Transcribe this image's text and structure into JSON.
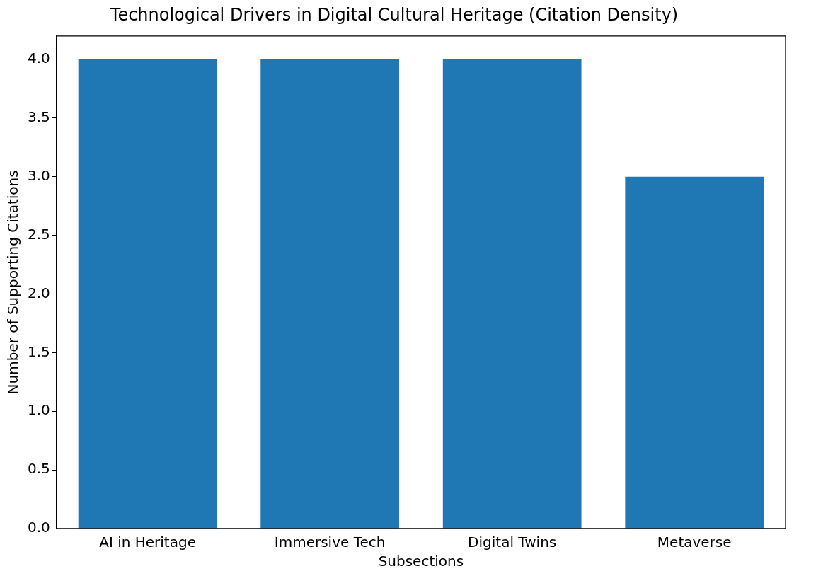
{
  "chart_data": {
    "type": "bar",
    "title": "Technological Drivers in Digital Cultural Heritage (Citation Density)",
    "xlabel": "Subsections",
    "ylabel": "Number of Supporting Citations",
    "categories": [
      "AI in Heritage",
      "Immersive Tech",
      "Digital Twins",
      "Metaverse"
    ],
    "values": [
      4,
      4,
      4,
      3
    ],
    "color": "#1f77b4",
    "ylim": [
      0,
      4.2
    ],
    "yticks": [
      {
        "value": 0,
        "label": "0.0"
      },
      {
        "value": 0.5,
        "label": "0.5"
      },
      {
        "value": 1,
        "label": "1.0"
      },
      {
        "value": 1.5,
        "label": "1.5"
      },
      {
        "value": 2,
        "label": "2.0"
      },
      {
        "value": 2.5,
        "label": "2.5"
      },
      {
        "value": 3,
        "label": "3.0"
      },
      {
        "value": 3.5,
        "label": "3.5"
      },
      {
        "value": 4,
        "label": "4.0"
      }
    ],
    "grid": false,
    "legend": false
  }
}
